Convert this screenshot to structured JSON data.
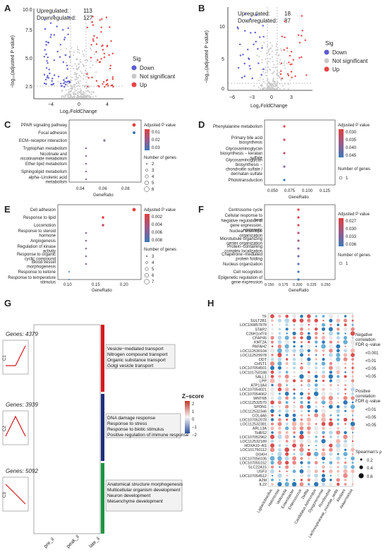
{
  "panels": {
    "A": {
      "label": "A",
      "up_label": "Upregulated:",
      "up": "113",
      "down_label": "Downregulated:",
      "down": "127",
      "ylabel": "−log₁₀(adjusted P value)",
      "xlabel": "Log₂FoldChange",
      "ymax_label": "10.0",
      "yticks": [
        "7.5",
        "5.0",
        "2.5"
      ],
      "xticks": [
        "−4",
        "0",
        "4"
      ],
      "legend_title": "Sig",
      "legend": [
        "Down",
        "Not significant",
        "Up"
      ]
    },
    "B": {
      "label": "B",
      "up_label": "Upregulated:",
      "up": "18",
      "down_label": "Downregulated:",
      "down": "87",
      "ylabel": "−log₁₀(adjusted P value)",
      "xlabel": "Log₂FoldChange",
      "yticks": [
        "10",
        "5",
        "0"
      ],
      "xticks": [
        "−6",
        "−3",
        "0",
        "3"
      ],
      "legend_title": "Sig",
      "legend": [
        "Down",
        "Not significant",
        "Up"
      ]
    },
    "C": {
      "label": "C",
      "xlabel": "GeneRatio",
      "xticks": [
        "0.04",
        "0.06",
        "0.08"
      ],
      "terms": [
        "PPAR signaling pathway",
        "Focal adhesion",
        "ECM−receptor interaction",
        "Tryptophan metabolism",
        "Nicotinate and nicotinamide metabolism",
        "Ether lipid metabolism",
        "Sphingolipid metabolism",
        "alpha−Linolenic acid metabolism"
      ],
      "cbar_title": "Adjusted P value",
      "cbar_ticks": [
        "0.01",
        "0.02",
        "0.03"
      ],
      "size_title": "Number of genes",
      "size_ticks": [
        "2",
        "3",
        "4",
        "5",
        "6"
      ]
    },
    "D": {
      "label": "D",
      "xlabel": "GeneRatio",
      "xticks": [
        "0.050",
        "0.075",
        "0.100",
        "0.125"
      ],
      "terms": [
        "Phenylalanine metabolism",
        "Primary bile acid biosynthesis",
        "Glycosaminoglycan biosynthesis − keratan sulfate",
        "Glycosaminoglycan biosynthesis − chondroitin sulfate / dermatan sulfate",
        "Phototransduction"
      ],
      "cbar_title": "Adjusted P value",
      "cbar_ticks": [
        "0.030",
        "0.035",
        "0.040",
        "0.045"
      ],
      "size_title": "Number of genes",
      "size_ticks": [
        "1"
      ]
    },
    "E": {
      "label": "E",
      "xlabel": "GeneRatio",
      "xticks": [
        "0.10",
        "0.15",
        "0.20"
      ],
      "terms": [
        "Cell adhesion",
        "Response to lipid",
        "Locomotion",
        "Response to steroid hormone",
        "Angiogenesis",
        "Regulation of kinase activity",
        "Response to organic cyclic compound",
        "Blood vessel morphogenesis",
        "Response to ketone",
        "Response to temperature stimulus"
      ],
      "cbar_title": "Adjusted P value",
      "cbar_ticks": [
        "0.002",
        "0.004",
        "0.006",
        "0.008"
      ],
      "size_title": "Number of genes",
      "size_ticks": [
        "3",
        "4",
        "5",
        "6",
        "7"
      ]
    },
    "F": {
      "label": "F",
      "xlabel": "GeneRatio",
      "xticks": [
        "0.150",
        "0.175",
        "0.200",
        "0.225",
        "0.250"
      ],
      "terms": [
        "Centrosome cycle",
        "Cellular response to heat",
        "Negative regulation of gene expression, epigenetic",
        "Nuclear envelope organization",
        "Microtubule organizing center organization",
        "Protein−containing complex localization",
        "Chaperone−mediated protein folding",
        "Nucleus organization",
        "Cell recognition",
        "Epigenetic regulation of gene expression"
      ],
      "cbar_title": "Adjusted P value",
      "cbar_ticks": [
        "0.027",
        "0.030",
        "0.033",
        "0.036"
      ],
      "size_title": "Number of genes",
      "size_ticks": [
        "1"
      ]
    },
    "G": {
      "label": "G",
      "clusters": [
        {
          "id": "C1",
          "genes": "Genes: 4379",
          "terms": [
            "Vesicle−mediated transport",
            "Nitrogen compound transport",
            "Organic substance transport",
            "Golgi vesicle transport"
          ]
        },
        {
          "id": "C2",
          "genes": "Genes: 3939",
          "terms": [
            "DNA damage response",
            "Response to stress",
            "Response to biotic stimulus",
            "Positive regulation of immune response"
          ]
        },
        {
          "id": "C3",
          "genes": "Genes: 5092",
          "terms": [
            "Anatomical structure morphogenesis",
            "Multicellular organism development",
            "Neuron development",
            "Mesenchyme development"
          ]
        }
      ],
      "columns": [
        "pre_il",
        "peak_il",
        "late_il"
      ],
      "zscore_title": "Z−score",
      "zscore_ticks": [
        "2",
        "1",
        "0",
        "−1",
        "−2"
      ]
    },
    "H": {
      "label": "H",
      "genes": [
        "TF",
        "SULT2B1",
        "LOC100857878",
        "STAP2",
        "C26H1orf74",
        "CFAP45",
        "KMT2A",
        "PAFAH2",
        "LOC112530104",
        "LOC112529978",
        "DDT",
        "CHST1",
        "LOC107054501",
        "LOC101750188",
        "SALL1",
        "LPP",
        "ATP13A4",
        "LOC107054021",
        "LOC107054062",
        "WNT6B",
        "LOC112532570",
        "SPON1",
        "LOC112532346",
        "COL4A6",
        "LOC107052078",
        "LOC112532381",
        "ARL13A",
        "THBS2",
        "LOC107052962",
        "LOC112532189",
        "HOXA10−AS",
        "LOC101750112",
        "DGKH",
        "LOC107056106",
        "LOC107055152",
        "SLC22A15",
        "USF3",
        "LOC107054512",
        "A2M",
        "IL22"
      ],
      "taxa": [
        "Ligilactobacillus",
        "Halomonas",
        "Veillonella",
        "Enterobacter",
        "Enterococcus",
        "Delftia",
        "Candidatus Arthromitus",
        "Dysgonomonas",
        "Romboutsia",
        "Lachnospiraceae_incertae_sedis",
        "Alistipes",
        "Akkermansia"
      ],
      "neg_title": [
        "Negative",
        "correlation",
        "FDR q−value"
      ],
      "neg_ticks": [
        "<0.001",
        "<0.01",
        "<0.05",
        ">0.05"
      ],
      "pos_title": [
        "Positive",
        "correlation",
        "FDR q−value"
      ],
      "pos_ticks": [
        "<0.01",
        "<0.05",
        ">0.05"
      ],
      "size_title": "Spearman's ρ",
      "size_ticks": [
        "0.2",
        "0.4",
        "0.6"
      ]
    }
  },
  "colors": {
    "down": "#5b5bd6",
    "up": "#e64545",
    "ns": "#c8c8c8",
    "heat_hi": "#c0392b",
    "heat_lo": "#2c4f9e",
    "c1": "#d7191c",
    "c2": "#1f2f7a",
    "c3": "#1a9641"
  }
}
